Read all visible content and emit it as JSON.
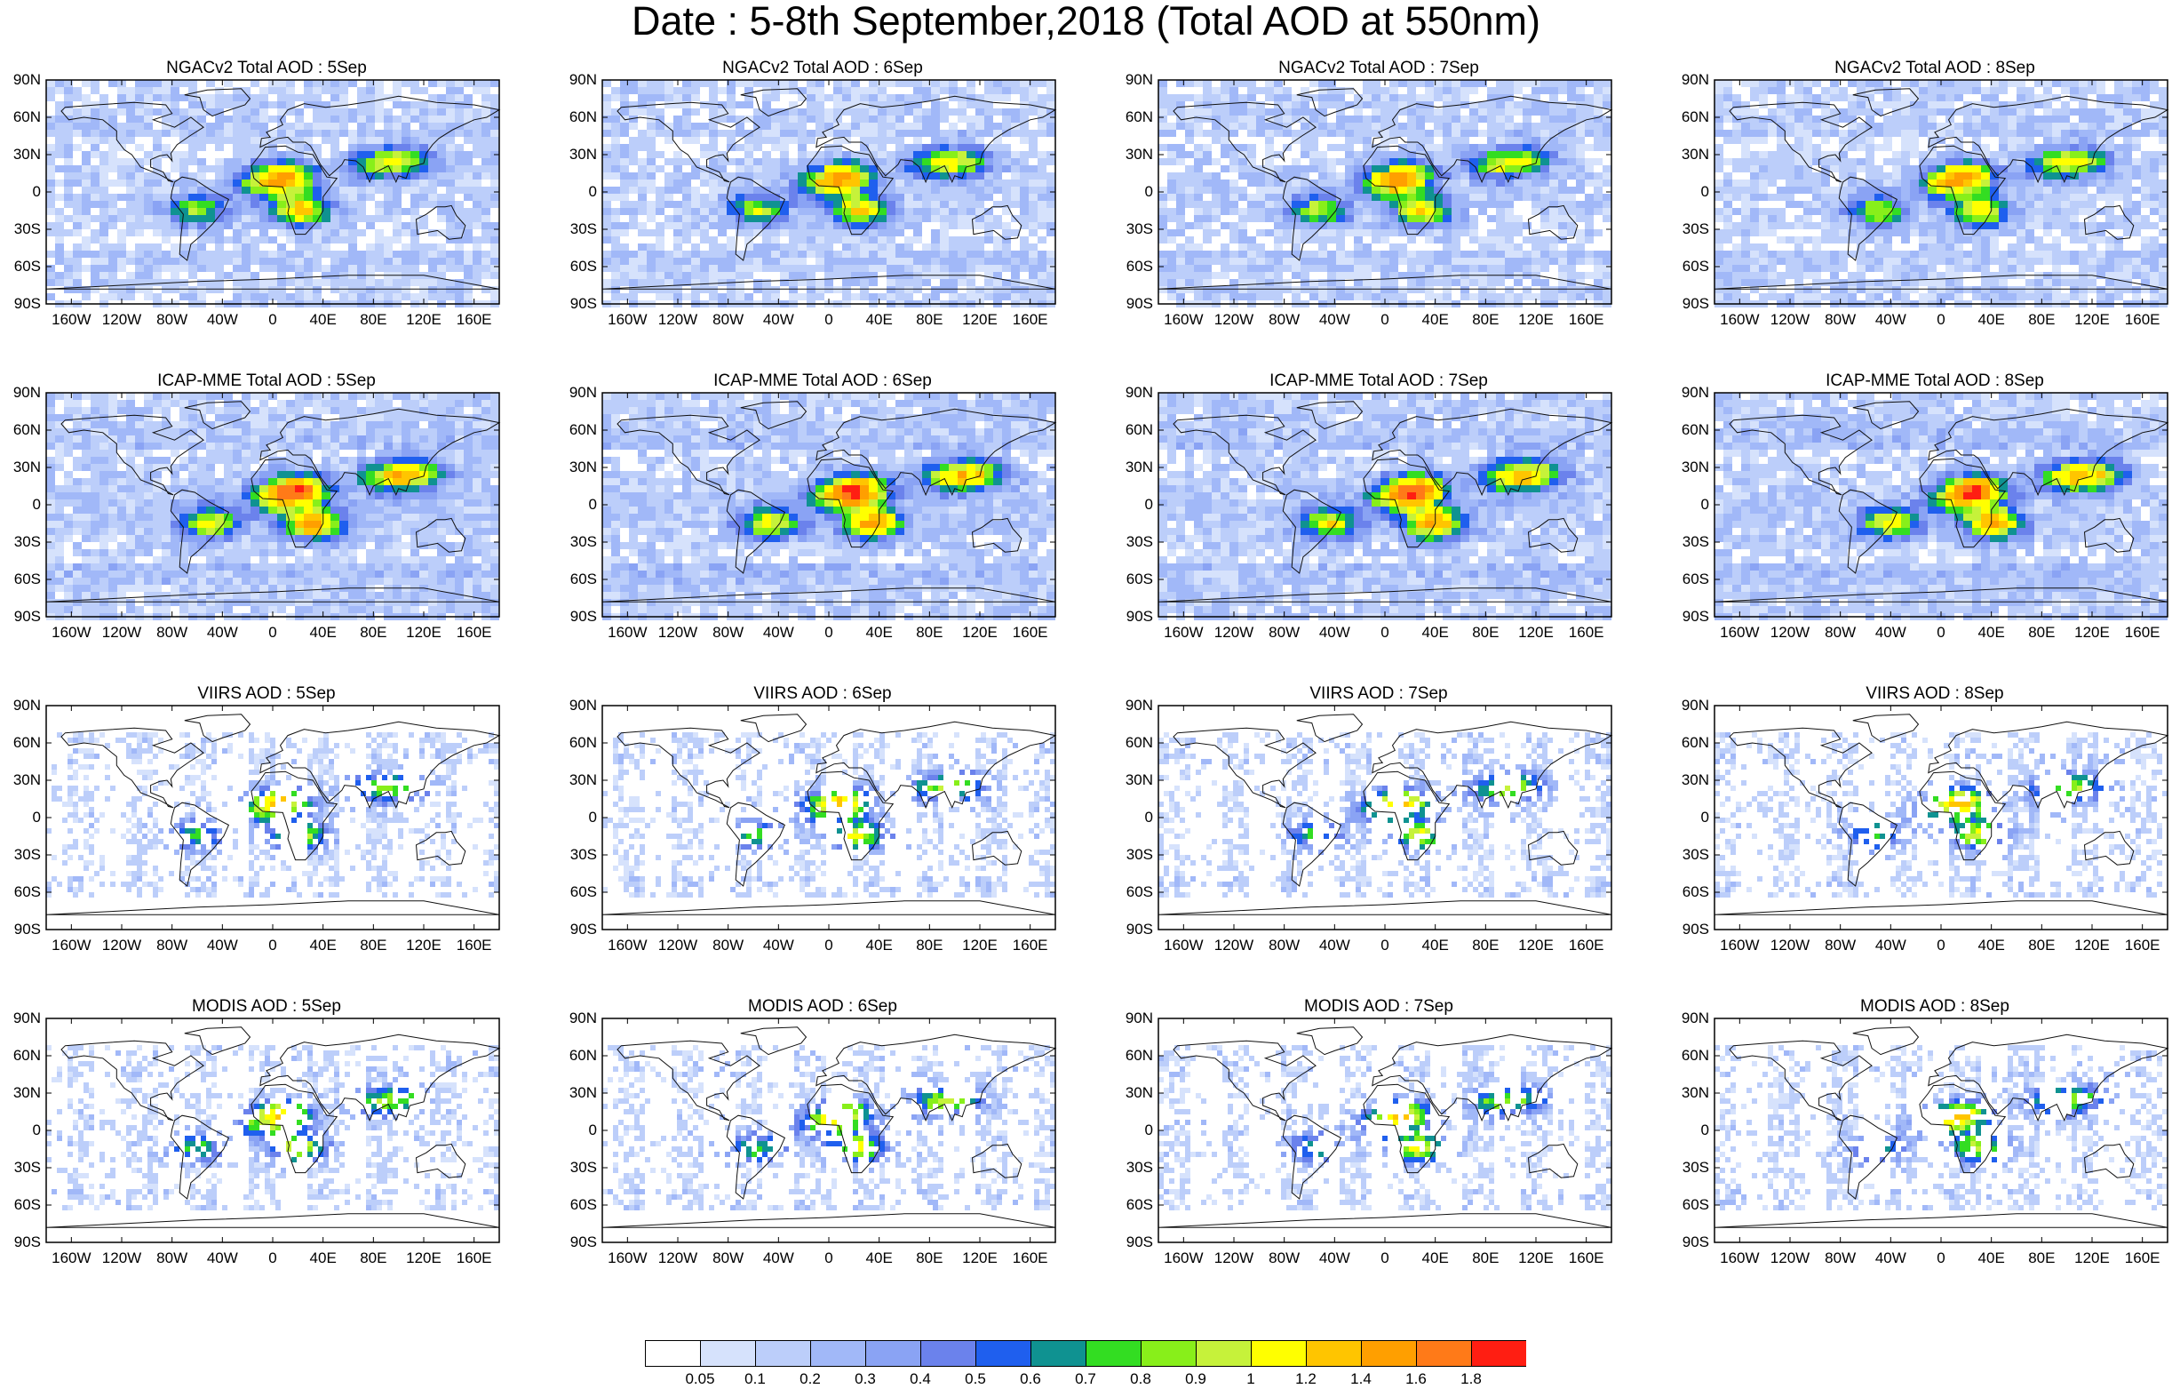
{
  "title": "Date : 5-8th September,2018 (Total AOD at 550nm)",
  "panels": [
    {
      "title": "NGACv2 Total AOD : 5Sep",
      "source": "NGACv2",
      "day": 5
    },
    {
      "title": "NGACv2 Total AOD : 6Sep",
      "source": "NGACv2",
      "day": 6
    },
    {
      "title": "NGACv2 Total AOD : 7Sep",
      "source": "NGACv2",
      "day": 7
    },
    {
      "title": "NGACv2 Total AOD : 8Sep",
      "source": "NGACv2",
      "day": 8
    },
    {
      "title": "ICAP-MME Total AOD : 5Sep",
      "source": "ICAP-MME",
      "day": 5
    },
    {
      "title": "ICAP-MME Total AOD : 6Sep",
      "source": "ICAP-MME",
      "day": 6
    },
    {
      "title": "ICAP-MME Total AOD : 7Sep",
      "source": "ICAP-MME",
      "day": 7
    },
    {
      "title": "ICAP-MME Total AOD : 8Sep",
      "source": "ICAP-MME",
      "day": 8
    },
    {
      "title": "VIIRS AOD : 5Sep",
      "source": "VIIRS",
      "day": 5
    },
    {
      "title": "VIIRS AOD : 6Sep",
      "source": "VIIRS",
      "day": 6
    },
    {
      "title": "VIIRS AOD : 7Sep",
      "source": "VIIRS",
      "day": 7
    },
    {
      "title": "VIIRS AOD : 8Sep",
      "source": "VIIRS",
      "day": 8
    },
    {
      "title": "MODIS AOD : 5Sep",
      "source": "MODIS",
      "day": 5
    },
    {
      "title": "MODIS AOD : 6Sep",
      "source": "MODIS",
      "day": 6
    },
    {
      "title": "MODIS AOD : 7Sep",
      "source": "MODIS",
      "day": 7
    },
    {
      "title": "MODIS AOD : 8Sep",
      "source": "MODIS",
      "day": 8
    }
  ],
  "lat_labels": [
    "90N",
    "60N",
    "30N",
    "0",
    "30S",
    "60S",
    "90S"
  ],
  "lat_values": [
    90,
    60,
    30,
    0,
    -30,
    -60,
    -90
  ],
  "lon_labels": [
    "160W",
    "120W",
    "80W",
    "40W",
    "0",
    "40E",
    "80E",
    "120E",
    "160E"
  ],
  "lon_values": [
    -160,
    -120,
    -80,
    -40,
    0,
    40,
    80,
    120,
    160
  ],
  "colorbar": {
    "labels": [
      "0.05",
      "0.1",
      "0.2",
      "0.3",
      "0.4",
      "0.5",
      "0.6",
      "0.7",
      "0.8",
      "0.9",
      "1",
      "1.2",
      "1.4",
      "1.6",
      "1.8"
    ],
    "colors": [
      "#ffffff",
      "#d6e2fc",
      "#bccefa",
      "#a1b8f8",
      "#8aa3f4",
      "#6b82ec",
      "#1f5fee",
      "#0f9291",
      "#33dd22",
      "#88ef1a",
      "#c6f23a",
      "#ffff00",
      "#ffc500",
      "#ff9f00",
      "#ff7a18",
      "#ff1e12"
    ]
  }
}
